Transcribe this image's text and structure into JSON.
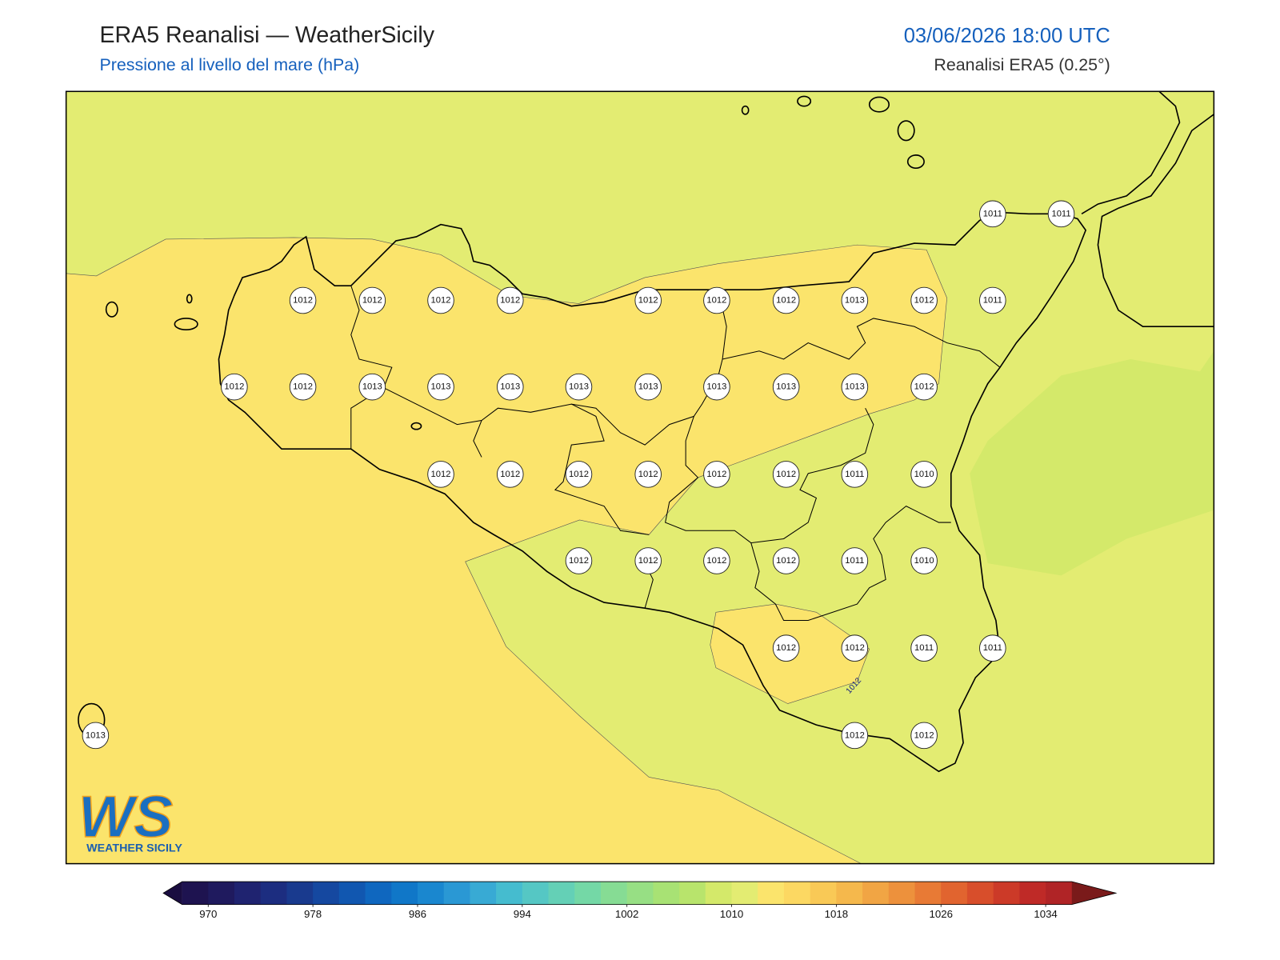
{
  "header": {
    "title": "ERA5 Reanalisi — WeatherSicily",
    "subtitle": "Pressione al livello del mare (hPa)",
    "datetime": "03/06/2026 18:00 UTC",
    "source": "Reanalisi ERA5 (0.25°)"
  },
  "stations": [
    1011,
    1011,
    1012,
    1012,
    1012,
    1012,
    1012,
    1012,
    1012,
    1013,
    1012,
    1011,
    1012,
    1012,
    1013,
    1013,
    1013,
    1013,
    1013,
    1013,
    1013,
    1013,
    1012,
    1012,
    1012,
    1012,
    1012,
    1012,
    1012,
    1011,
    1010,
    1012,
    1012,
    1012,
    1012,
    1011,
    1010,
    1012,
    1012,
    1011,
    1011,
    1013,
    1012,
    1012
  ],
  "contour_labels": [
    1012
  ],
  "colorbar": {
    "range": [
      968,
      1036
    ],
    "ticks": [
      970,
      978,
      986,
      994,
      1002,
      1010,
      1018,
      1026,
      1034
    ],
    "colors": [
      "#1e1350",
      "#1f1a5e",
      "#1f2370",
      "#1c2d80",
      "#193a8e",
      "#1548a0",
      "#1157b0",
      "#0f67bf",
      "#1077c8",
      "#1a87cf",
      "#2a98d4",
      "#38aad4",
      "#45bccf",
      "#55c7c4",
      "#64d0b6",
      "#74d8a6",
      "#86dc94",
      "#97df84",
      "#a8e274",
      "#b8e46c",
      "#d4e96a",
      "#e3ec72",
      "#fbe46c",
      "#fcd862",
      "#f9c956",
      "#f5b84c",
      "#f1a544",
      "#ed913c",
      "#e87a35",
      "#e1642f",
      "#d84e2b",
      "#cc3a28",
      "#bf2a27",
      "#b02426"
    ],
    "under_color": "#1a0d40",
    "over_color": "#7a1a1a"
  },
  "logo": {
    "mark": "WS",
    "name": "WEATHER SICILY"
  }
}
